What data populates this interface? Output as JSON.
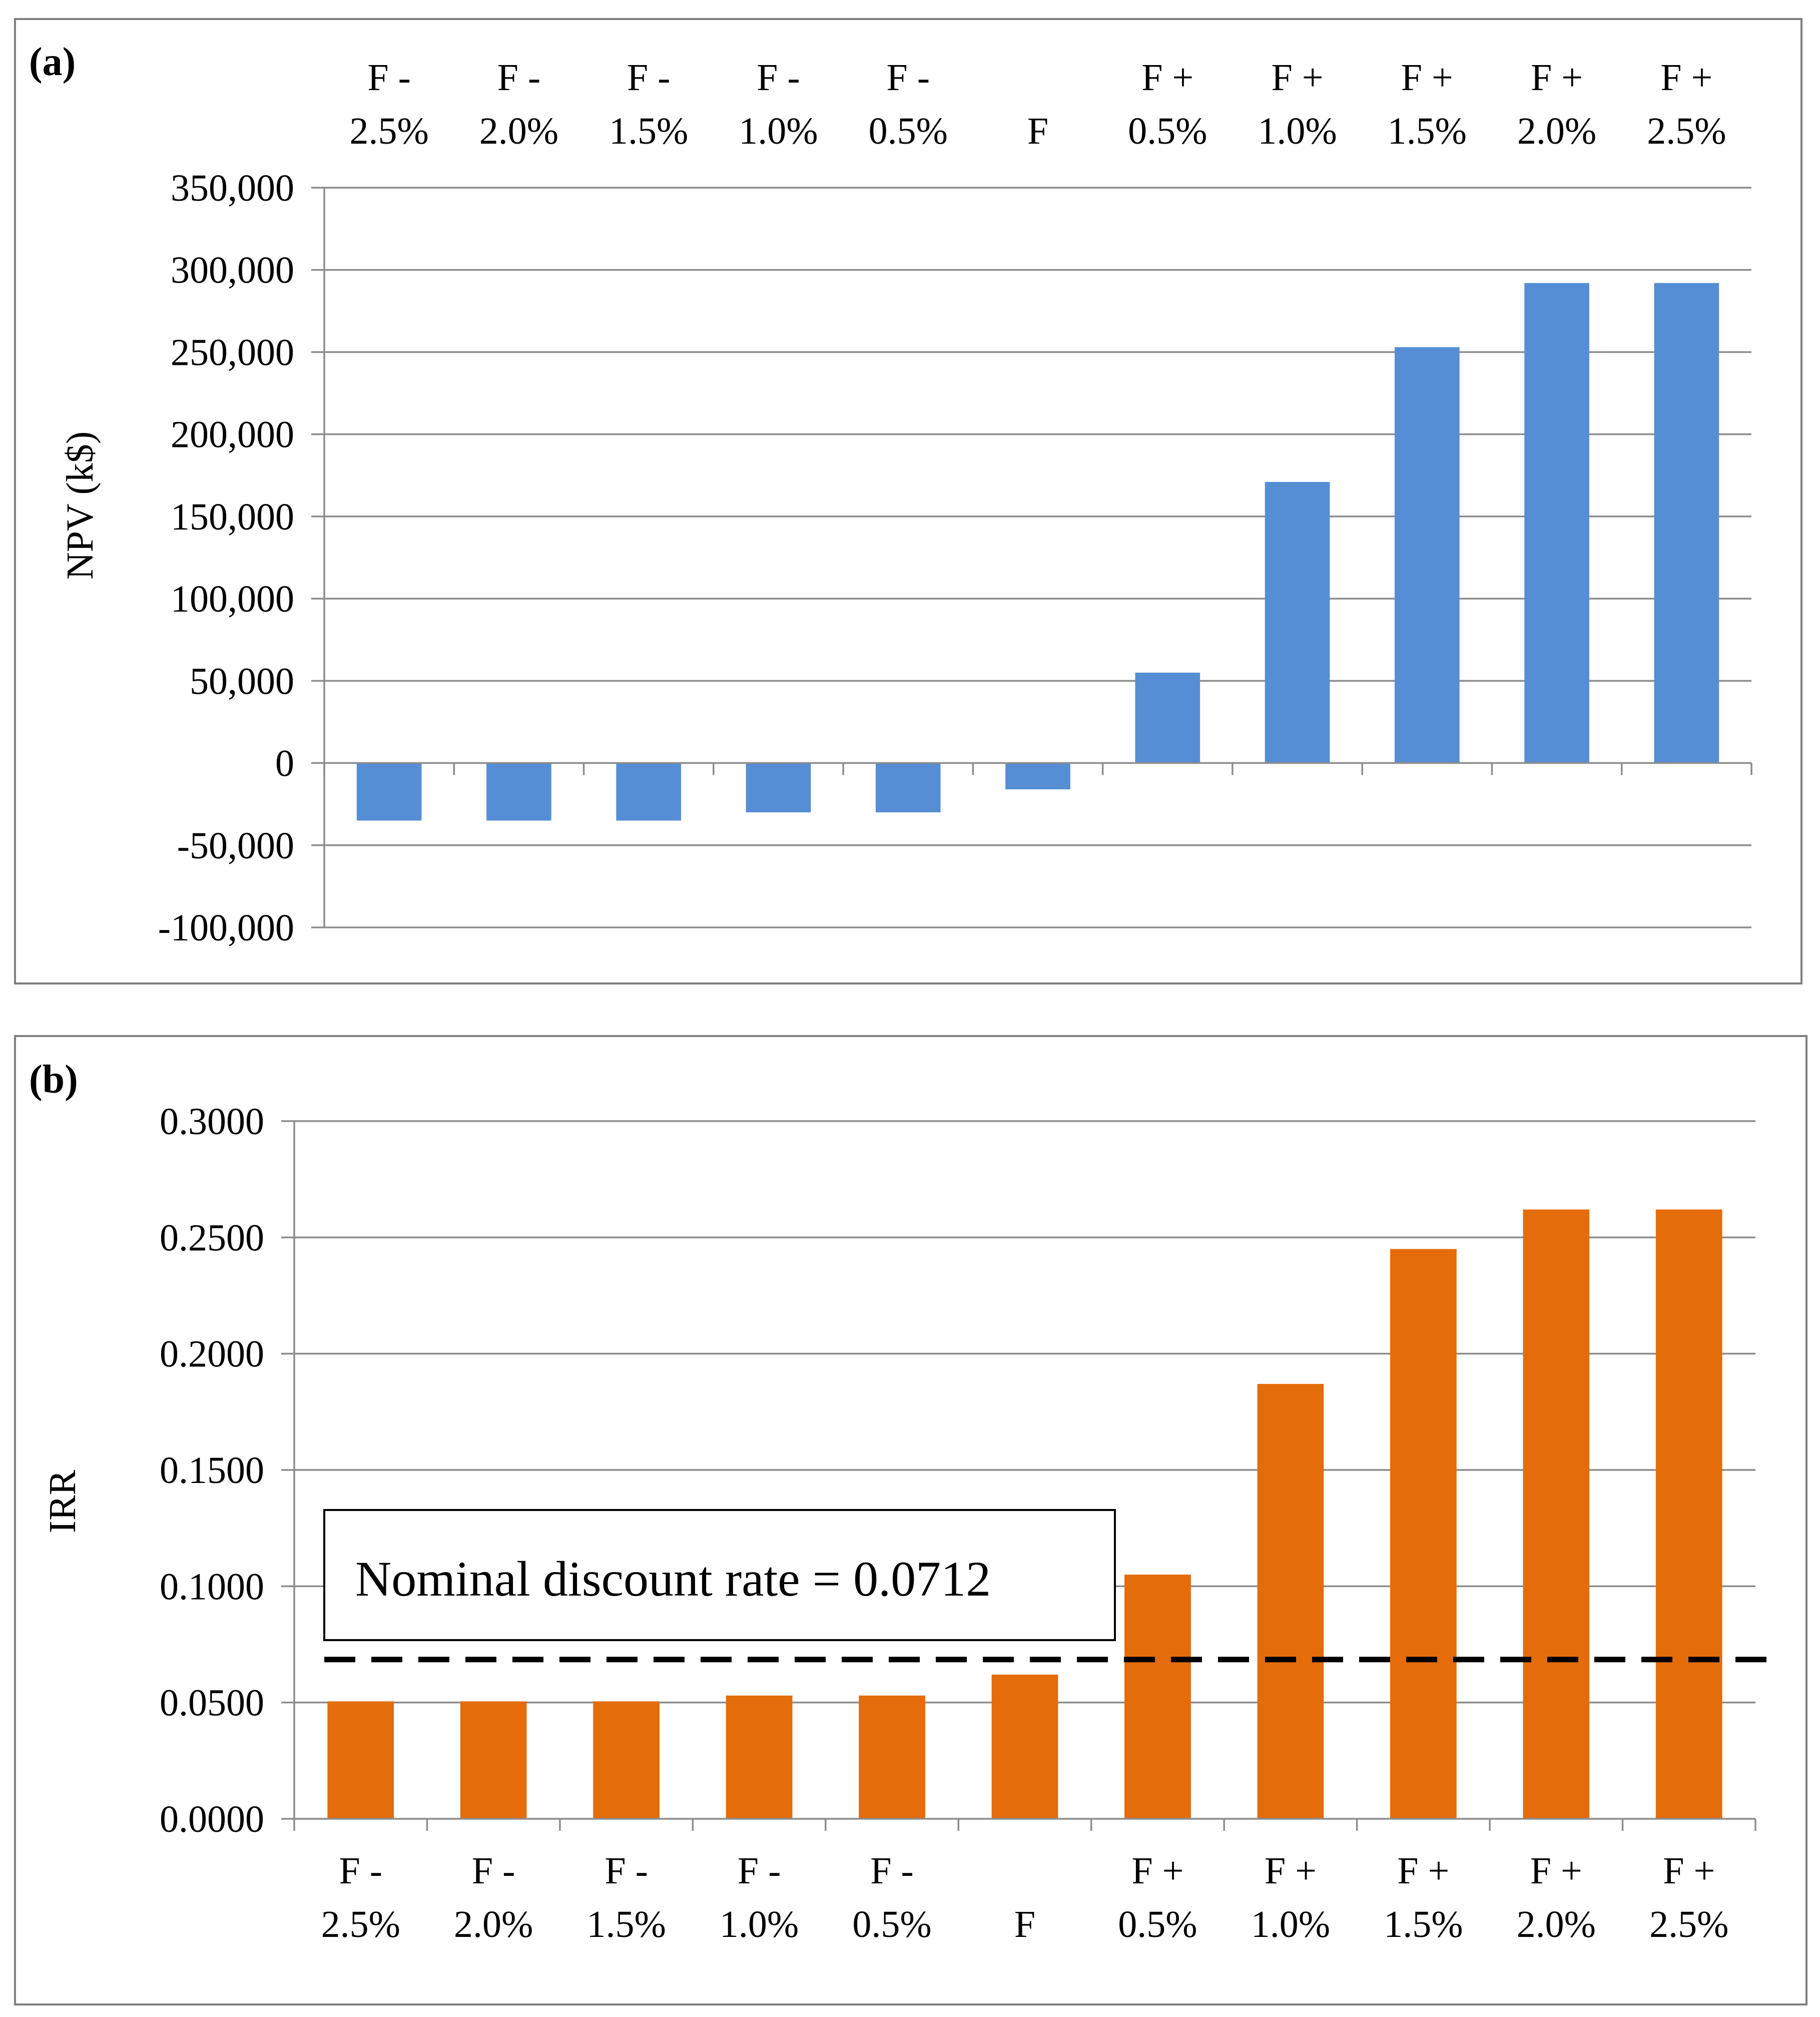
{
  "chart_data": [
    {
      "panel_label": "(a)",
      "type": "bar",
      "categories": [
        [
          "F -",
          "2.5%"
        ],
        [
          "F -",
          "2.0%"
        ],
        [
          "F -",
          "1.5%"
        ],
        [
          "F -",
          "1.0%"
        ],
        [
          "F -",
          "0.5%"
        ],
        [
          "F",
          ""
        ],
        [
          "F +",
          "0.5%"
        ],
        [
          "F +",
          "1.0%"
        ],
        [
          "F +",
          "1.5%"
        ],
        [
          "F +",
          "2.0%"
        ],
        [
          "F +",
          "2.5%"
        ]
      ],
      "values": [
        -35000,
        -35000,
        -35000,
        -30000,
        -30000,
        -16000,
        55000,
        171000,
        253000,
        292000,
        292000
      ],
      "ylabel": "NPV  (k$)",
      "ylim": [
        -100000,
        350000
      ],
      "yticks": [
        "350,000",
        "300,000",
        "250,000",
        "200,000",
        "150,000",
        "100,000",
        "50,000",
        "0",
        "-50,000",
        "-100,000"
      ],
      "ytick_values": [
        350000,
        300000,
        250000,
        200000,
        150000,
        100000,
        50000,
        0,
        -50000,
        -100000
      ],
      "grid": true,
      "category_axis_position": "top",
      "color": "#558ed5"
    },
    {
      "panel_label": "(b)",
      "type": "bar",
      "categories": [
        [
          "F -",
          "2.5%"
        ],
        [
          "F -",
          "2.0%"
        ],
        [
          "F -",
          "1.5%"
        ],
        [
          "F -",
          "1.0%"
        ],
        [
          "F -",
          "0.5%"
        ],
        [
          "F",
          ""
        ],
        [
          "F +",
          "0.5%"
        ],
        [
          "F +",
          "1.0%"
        ],
        [
          "F +",
          "1.5%"
        ],
        [
          "F +",
          "2.0%"
        ],
        [
          "F +",
          "2.5%"
        ]
      ],
      "values": [
        0.0505,
        0.0505,
        0.0505,
        0.053,
        0.053,
        0.062,
        0.105,
        0.187,
        0.245,
        0.262,
        0.262
      ],
      "ylabel": "IRR",
      "ylim": [
        0,
        0.3
      ],
      "yticks": [
        "0.3000",
        "0.2500",
        "0.2000",
        "0.1500",
        "0.1000",
        "0.0500",
        "0.0000"
      ],
      "ytick_values": [
        0.3,
        0.25,
        0.2,
        0.15,
        0.1,
        0.05,
        0
      ],
      "grid": true,
      "category_axis_position": "bottom",
      "color": "#e46c0a",
      "reference_line": {
        "value": 0.0685,
        "style": "dashed",
        "color": "#000000"
      },
      "annotation": "Nominal discount rate = 0.0712"
    }
  ]
}
